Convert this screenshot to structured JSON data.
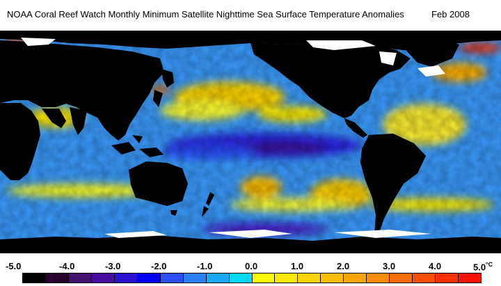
{
  "title": {
    "text": "NOAA Coral Reef Watch Monthly Minimum Satellite Nighttime Sea Surface Temperature Anomalies",
    "date": "Feb 2008"
  },
  "legend": {
    "ticks": [
      "-5.0",
      "-4.0",
      "-3.0",
      "-2.0",
      "-1.0",
      "0.0",
      "1.0",
      "2.0",
      "3.0",
      "4.0",
      "5.0"
    ],
    "unit": "°C",
    "colors": [
      "#000000",
      "#2a0030",
      "#45106e",
      "#4a0ca0",
      "#2a10d0",
      "#0000f5",
      "#2a50ff",
      "#2a80ff",
      "#1aa8ff",
      "#00d8ff",
      "#ffff00",
      "#ffe800",
      "#ffd400",
      "#ffbf00",
      "#ffa500",
      "#ff8c00",
      "#ff6e00",
      "#ff5000",
      "#ff3000",
      "#ff1000"
    ]
  },
  "map": {
    "land_color": "#000000",
    "ice_color": "#ffffff",
    "ocean_base": "#3a9cff"
  }
}
